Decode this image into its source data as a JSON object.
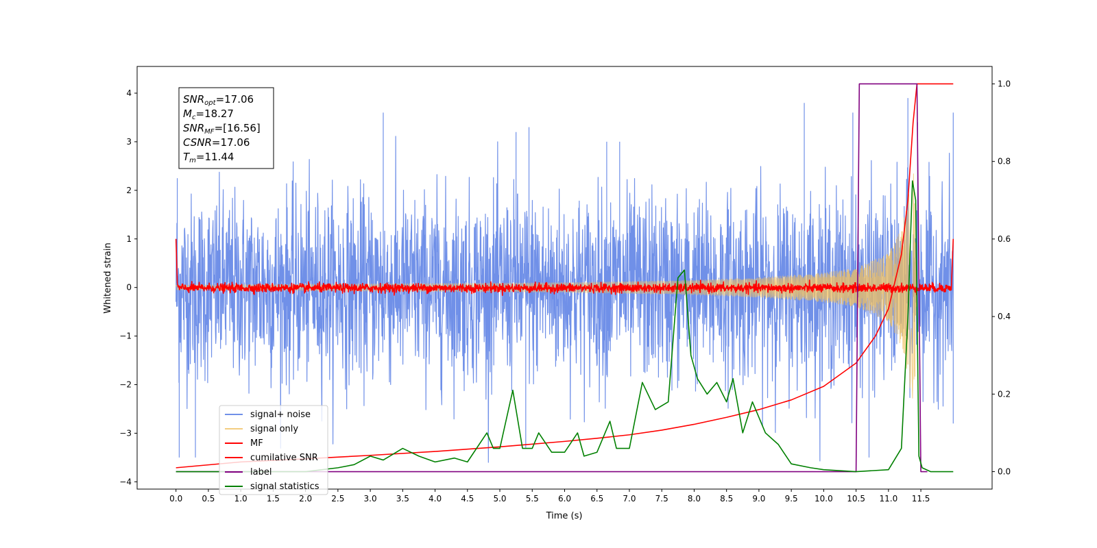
{
  "chart_data": {
    "type": "line",
    "xlabel": "Time (s)",
    "ylabel": "Whitened strain",
    "xlim": [
      -0.6,
      12.6
    ],
    "ylim": [
      -4.15,
      4.55
    ],
    "ylim_right": [
      -0.045,
      1.045
    ],
    "x_ticks": [
      0.0,
      0.5,
      1.0,
      1.5,
      2.0,
      2.5,
      3.0,
      3.5,
      4.0,
      4.5,
      5.0,
      5.5,
      6.0,
      6.5,
      7.0,
      7.5,
      8.0,
      8.5,
      9.0,
      9.5,
      10.0,
      10.5,
      11.0,
      11.5
    ],
    "x_tick_labels": [
      "0.0",
      "0.5",
      "1.0",
      "1.5",
      "2.0",
      "2.5",
      "3.0",
      "3.5",
      "4.0",
      "4.5",
      "5.0",
      "5.5",
      "6.0",
      "6.5",
      "7.0",
      "7.5",
      "8.0",
      "8.5",
      "9.0",
      "9.5",
      "10.0",
      "10.5",
      "11.0",
      "11.5"
    ],
    "y_ticks": [
      4,
      3,
      2,
      1,
      0,
      -1,
      -2,
      -3,
      -4
    ],
    "y_tick_labels": [
      "4",
      "3",
      "2",
      "1",
      "0",
      "−1",
      "−2",
      "−3",
      "−4"
    ],
    "y_ticks_right": [
      1.0,
      0.8,
      0.6,
      0.4,
      0.2,
      0.0
    ],
    "y_tick_labels_right": [
      "1.0",
      "0.8",
      "0.6",
      "0.4",
      "0.2",
      "0.0"
    ],
    "grid": false,
    "legend_position": "lower-left",
    "annotation": [
      {
        "sym": "SNR",
        "sub": "opt",
        "val": "=17.06"
      },
      {
        "sym": "M",
        "sub": "c",
        "val": "=18.27"
      },
      {
        "sym": "SNR",
        "sub": "MF",
        "val": "=[16.56]"
      },
      {
        "sym": "CSNR",
        "sub": "",
        "val": "=17.06"
      },
      {
        "sym": "T",
        "sub": "m",
        "val": "=11.44"
      }
    ],
    "series": [
      {
        "name": "signal+ noise",
        "color": "#7090e8",
        "axis": "left",
        "description": "whitened noise plus signal, roughly N(0, 1) with peaks up to about 3.8",
        "x_range": [
          0.0,
          12.0
        ],
        "peak_samples": [
          [
            0.02,
            2.25
          ],
          [
            0.05,
            -3.5
          ],
          [
            0.3,
            -3.5
          ],
          [
            3.2,
            3.6
          ],
          [
            5.25,
            3.2
          ],
          [
            5.4,
            -3.3
          ],
          [
            5.45,
            3.3
          ],
          [
            6.65,
            3.0
          ],
          [
            6.85,
            3.0
          ],
          [
            9.7,
            3.8
          ],
          [
            10.45,
            3.6
          ],
          [
            10.7,
            -3.5
          ],
          [
            11.3,
            3.9
          ],
          [
            11.45,
            3.4
          ],
          [
            12.0,
            3.6
          ],
          [
            12.0,
            -2.8
          ]
        ]
      },
      {
        "name": "signal only",
        "color": "#f0c060",
        "axis": "left",
        "description": "chirp whose amplitude grows until merger near 11.44 s",
        "envelope": [
          [
            0.0,
            0.05
          ],
          [
            6.0,
            0.1
          ],
          [
            8.0,
            0.15
          ],
          [
            9.0,
            0.2
          ],
          [
            9.5,
            0.25
          ],
          [
            10.0,
            0.3
          ],
          [
            10.5,
            0.4
          ],
          [
            11.0,
            0.7
          ],
          [
            11.2,
            1.2
          ],
          [
            11.3,
            1.8
          ],
          [
            11.35,
            2.2
          ],
          [
            11.4,
            2.4
          ],
          [
            11.44,
            0.0
          ]
        ]
      },
      {
        "name": "MF",
        "color": "#ff0000",
        "axis": "left",
        "description": "matched-filter output, near 0 with an initial spike of 1.0",
        "points": [
          [
            0.0,
            1.0
          ],
          [
            0.02,
            0.1
          ],
          [
            0.05,
            -0.02
          ],
          [
            12.0,
            -0.02
          ],
          [
            12.0,
            1.0
          ]
        ]
      },
      {
        "name": "cumilative SNR",
        "color": "#ff0000",
        "axis": "right",
        "points": [
          [
            0.0,
            0.01
          ],
          [
            1.0,
            0.025
          ],
          [
            2.0,
            0.033
          ],
          [
            3.0,
            0.042
          ],
          [
            4.0,
            0.052
          ],
          [
            5.0,
            0.064
          ],
          [
            6.0,
            0.078
          ],
          [
            6.5,
            0.086
          ],
          [
            7.0,
            0.095
          ],
          [
            7.5,
            0.107
          ],
          [
            8.0,
            0.122
          ],
          [
            8.5,
            0.14
          ],
          [
            9.0,
            0.16
          ],
          [
            9.5,
            0.185
          ],
          [
            10.0,
            0.22
          ],
          [
            10.5,
            0.28
          ],
          [
            10.8,
            0.35
          ],
          [
            11.0,
            0.42
          ],
          [
            11.2,
            0.56
          ],
          [
            11.3,
            0.7
          ],
          [
            11.38,
            0.9
          ],
          [
            11.44,
            1.0
          ],
          [
            12.0,
            1.0
          ]
        ]
      },
      {
        "name": "label",
        "color": "#800080",
        "axis": "right",
        "points": [
          [
            0.0,
            0.0
          ],
          [
            10.5,
            0.0
          ],
          [
            10.55,
            1.0
          ],
          [
            11.44,
            1.0
          ],
          [
            11.5,
            0.0
          ],
          [
            11.6,
            0.0
          ]
        ]
      },
      {
        "name": "signal statistics",
        "color": "#008000",
        "axis": "right",
        "points": [
          [
            0.0,
            0.0
          ],
          [
            2.0,
            0.0
          ],
          [
            2.5,
            0.01
          ],
          [
            2.75,
            0.018
          ],
          [
            3.0,
            0.04
          ],
          [
            3.2,
            0.03
          ],
          [
            3.3,
            0.04
          ],
          [
            3.5,
            0.06
          ],
          [
            3.75,
            0.04
          ],
          [
            4.0,
            0.025
          ],
          [
            4.3,
            0.035
          ],
          [
            4.5,
            0.025
          ],
          [
            4.8,
            0.1
          ],
          [
            4.9,
            0.06
          ],
          [
            5.0,
            0.06
          ],
          [
            5.2,
            0.21
          ],
          [
            5.35,
            0.06
          ],
          [
            5.5,
            0.06
          ],
          [
            5.6,
            0.1
          ],
          [
            5.8,
            0.05
          ],
          [
            6.0,
            0.05
          ],
          [
            6.2,
            0.1
          ],
          [
            6.3,
            0.04
          ],
          [
            6.5,
            0.05
          ],
          [
            6.7,
            0.13
          ],
          [
            6.8,
            0.06
          ],
          [
            7.0,
            0.06
          ],
          [
            7.2,
            0.23
          ],
          [
            7.4,
            0.16
          ],
          [
            7.6,
            0.18
          ],
          [
            7.75,
            0.5
          ],
          [
            7.85,
            0.52
          ],
          [
            7.95,
            0.3
          ],
          [
            8.05,
            0.24
          ],
          [
            8.2,
            0.2
          ],
          [
            8.35,
            0.23
          ],
          [
            8.5,
            0.18
          ],
          [
            8.6,
            0.24
          ],
          [
            8.75,
            0.1
          ],
          [
            8.9,
            0.18
          ],
          [
            9.1,
            0.1
          ],
          [
            9.3,
            0.07
          ],
          [
            9.5,
            0.02
          ],
          [
            9.8,
            0.01
          ],
          [
            10.0,
            0.005
          ],
          [
            10.5,
            0.0
          ],
          [
            11.0,
            0.005
          ],
          [
            11.2,
            0.06
          ],
          [
            11.3,
            0.4
          ],
          [
            11.37,
            0.75
          ],
          [
            11.42,
            0.7
          ],
          [
            11.47,
            0.04
          ],
          [
            11.52,
            0.01
          ],
          [
            11.65,
            0.0
          ],
          [
            12.0,
            0.0
          ]
        ]
      }
    ]
  }
}
